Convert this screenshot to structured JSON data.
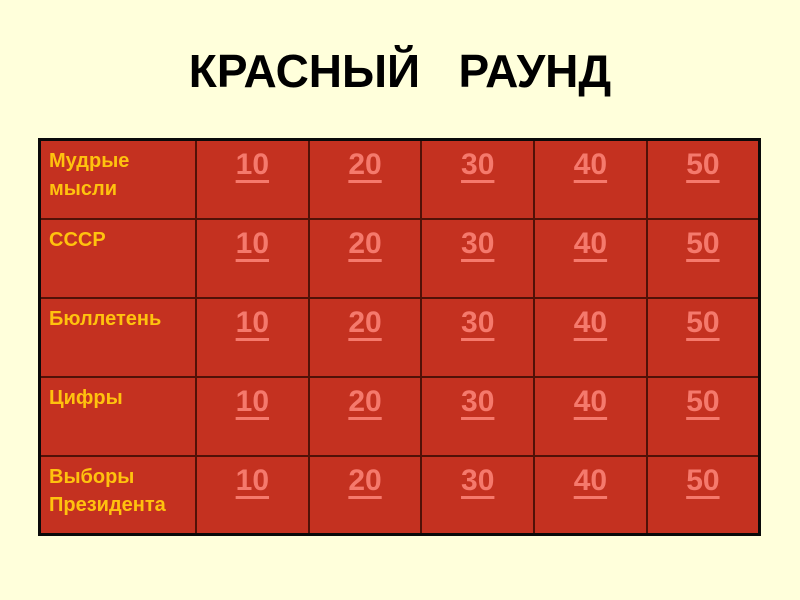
{
  "slide": {
    "title": "КРАСНЫЙ   РАУНД"
  },
  "board": {
    "categories": [
      "Мудрые мысли",
      "СССР",
      "Бюллетень",
      "Цифры",
      "Выборы Президента"
    ],
    "point_values": [
      "10",
      "20",
      "30",
      "40",
      "50"
    ]
  },
  "colors": {
    "page-bg": "#FFFFDB",
    "cell-red": "#C43120",
    "grid-line": "#521107",
    "outer-border": "#0A0A0A",
    "title-text": "#000000",
    "category-text": "#FFC20E",
    "value-link": "#F5796C"
  }
}
